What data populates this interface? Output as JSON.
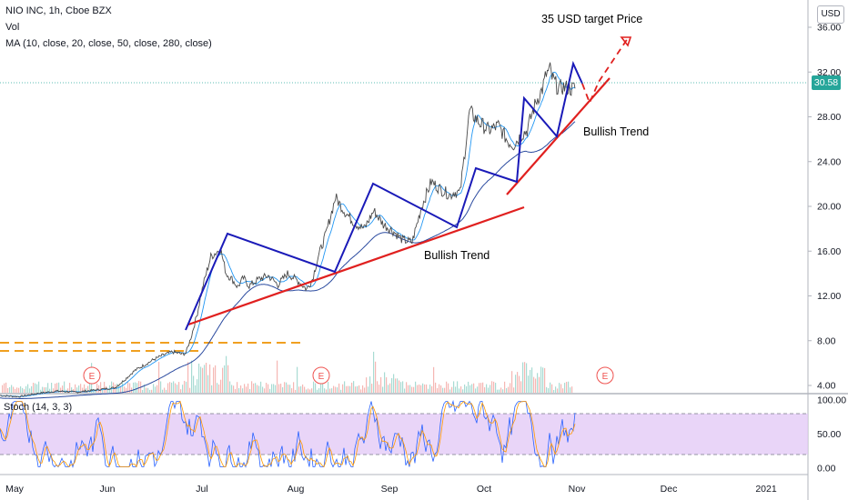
{
  "header": {
    "symbol_line": "NIO INC, 1h, Cboe BZX",
    "vol_label": "Vol",
    "ma_label": "MA (10, close, 20, close, 50, close, 280, close)",
    "currency_button": "USD",
    "last_price": "30.58"
  },
  "annotations": {
    "target_text": "35 USD target Price",
    "trend_upper_text": "Bullish Trend",
    "trend_lower_text": "Bullish Trend",
    "earnings_marker": "E"
  },
  "stoch_label": "Stoch (14, 3, 3)",
  "colors": {
    "price_line": "#4a4a4a",
    "ma_fast": "#2196f3",
    "ma_slow": "#2a4a9f",
    "trend_red": "#e0201f",
    "pattern_blue": "#1a1ab8",
    "target_red": "#e0201f",
    "support_orange": "#f0a020",
    "stoch_band": "#e1c7f5",
    "stoch_k": "#2962ff",
    "stoch_d": "#ff9800",
    "volume_up": "#a8dbd3",
    "volume_down": "#f5b7b3"
  },
  "chart_data": {
    "type": "line",
    "title": "NIO INC, 1h, Cboe BZX",
    "price_axis_ticks": [
      "36.00",
      "32.00",
      "28.00",
      "24.00",
      "20.00",
      "16.00",
      "12.00",
      "8.00",
      "4.00"
    ],
    "stoch_axis_ticks": [
      "100.00",
      "50.00",
      "0.00"
    ],
    "x_ticks": [
      "May",
      "Jun",
      "Jul",
      "Aug",
      "Sep",
      "Oct",
      "Nov",
      "Dec",
      "2021"
    ],
    "ylim": [
      1.5,
      38
    ],
    "series": [
      {
        "values_t": [
          0,
          10,
          20,
          30,
          40,
          50,
          60,
          65,
          70,
          75,
          80,
          85,
          90,
          95,
          97,
          100,
          103,
          106,
          110,
          115,
          118,
          121,
          124,
          127,
          130,
          135,
          140,
          145,
          150,
          155,
          160,
          163,
          166,
          170,
          175,
          180,
          185,
          190,
          195,
          200,
          205,
          210,
          215,
          220,
          225,
          230,
          235,
          237,
          240,
          245,
          250,
          255,
          260,
          265,
          268,
          272,
          275,
          278,
          280,
          283,
          285,
          287,
          288,
          290,
          292,
          293,
          295,
          297,
          298,
          300
        ],
        "values": [
          3.1,
          3.0,
          3.3,
          3.5,
          3.4,
          3.6,
          3.8,
          4.5,
          5.3,
          5.8,
          6.3,
          6.7,
          7.0,
          6.8,
          6.9,
          8.5,
          10.5,
          13.0,
          15.5,
          16.2,
          14.0,
          13.5,
          12.8,
          13.6,
          12.9,
          13.5,
          13.8,
          13.0,
          14.0,
          13.4,
          12.6,
          13.5,
          15.5,
          17.5,
          20.8,
          19.5,
          18.5,
          18.0,
          19.6,
          18.4,
          17.8,
          17.0,
          16.8,
          20.0,
          22.2,
          21.5,
          21.0,
          21.3,
          21.2,
          28.5,
          27.5,
          26.8,
          27.2,
          25.8,
          25.5,
          26.4,
          26.8,
          28.5,
          29.5,
          30.5,
          31.8,
          32.2,
          31.5,
          30.9,
          30.4,
          30.7,
          30.58,
          30.6,
          30.5,
          30.58
        ],
        "t_range_months": "May–Nov"
      }
    ],
    "stoch_levels": [
      20,
      80
    ],
    "target_price": 35,
    "last_price": 30.58
  }
}
